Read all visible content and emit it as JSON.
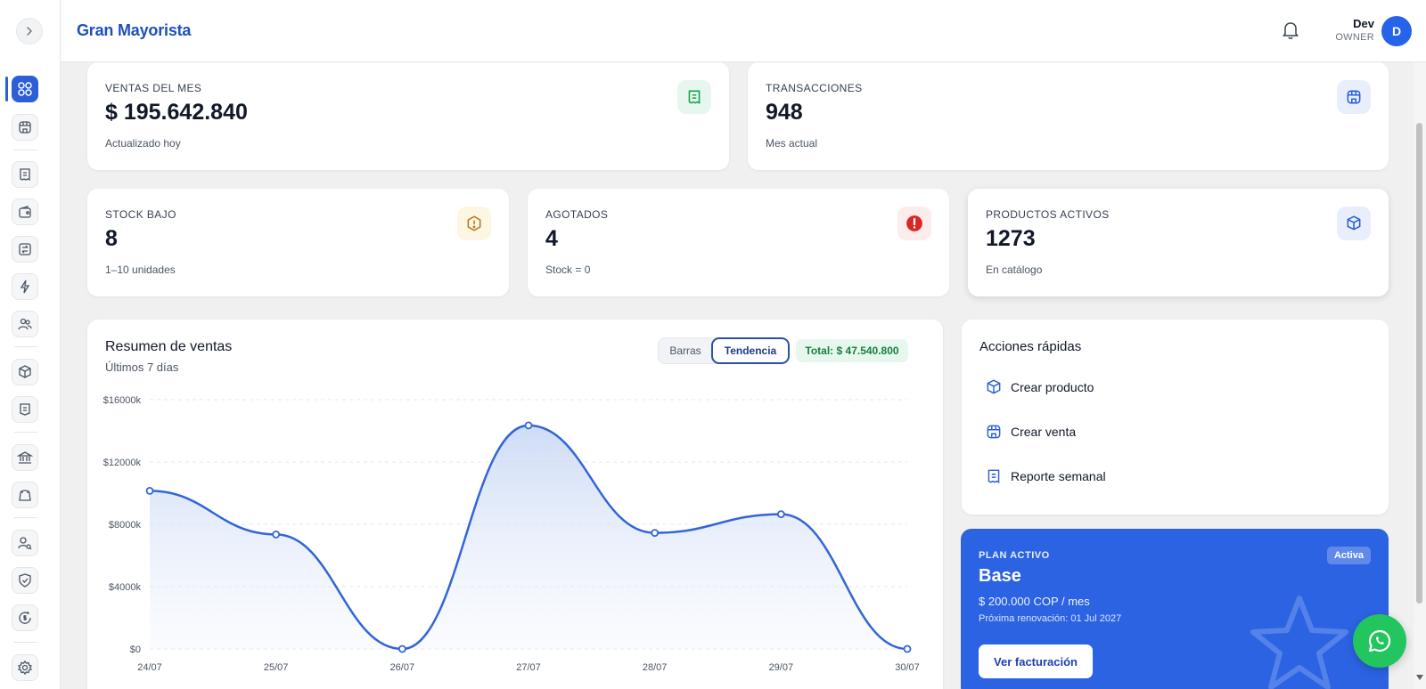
{
  "app": {
    "brand": "Gran Mayorista"
  },
  "user": {
    "name": "Dev",
    "role": "OWNER",
    "initial": "D"
  },
  "sidebar": {
    "items": [
      {
        "icon": "dashboard-icon",
        "active": true
      },
      {
        "icon": "store-icon"
      },
      {
        "icon": "receipt-icon"
      },
      {
        "icon": "wallet-icon"
      },
      {
        "icon": "transfer-icon"
      },
      {
        "icon": "lightning-icon"
      },
      {
        "icon": "users-icon"
      },
      {
        "icon": "box-icon"
      },
      {
        "icon": "invoice-icon"
      },
      {
        "icon": "bank-icon"
      },
      {
        "icon": "bag-icon"
      },
      {
        "icon": "user-search-icon"
      },
      {
        "icon": "shield-icon"
      },
      {
        "icon": "money-cycle-icon"
      },
      {
        "icon": "settings-icon"
      }
    ]
  },
  "stats": {
    "sales": {
      "label": "VENTAS DEL MES",
      "value": "$ 195.642.840",
      "sub": "Actualizado hoy",
      "icon": "receipt-icon",
      "icon_color": "#16a34a",
      "icon_bg": "#e7f6ee"
    },
    "transactions": {
      "label": "TRANSACCIONES",
      "value": "948",
      "sub": "Mes actual",
      "icon": "store-icon",
      "icon_color": "#2c5fd6",
      "icon_bg": "#e8eefc"
    },
    "low_stock": {
      "label": "STOCK BAJO",
      "value": "8",
      "sub": "1–10 unidades",
      "icon": "warning-hexagon-icon",
      "icon_color": "#b7791f",
      "icon_bg": "#fdf6e3"
    },
    "out_of_stock": {
      "label": "AGOTADOS",
      "value": "4",
      "sub": "Stock = 0",
      "icon": "alert-circle-icon",
      "icon_color": "#dc2626",
      "icon_bg": "#fdecec"
    },
    "active_products": {
      "label": "PRODUCTOS ACTIVOS",
      "value": "1273",
      "sub": "En catálogo",
      "icon": "box-icon",
      "icon_color": "#2c5fd6",
      "icon_bg": "#e8eefc"
    }
  },
  "sales_summary": {
    "title": "Resumen de ventas",
    "subtitle": "Últimos 7 días",
    "toggle_bars": "Barras",
    "toggle_trend": "Tendencia",
    "total": "Total: $ 47.540.800"
  },
  "chart_data": {
    "type": "area",
    "categories": [
      "24/07",
      "25/07",
      "26/07",
      "27/07",
      "28/07",
      "29/07",
      "30/07"
    ],
    "values": [
      10150,
      7350,
      0,
      14350,
      7450,
      8650,
      0
    ],
    "yticks": [
      "$16000k",
      "$12000k",
      "$8000k",
      "$4000k",
      "$0"
    ],
    "ylim": [
      0,
      16000
    ],
    "grid": true,
    "line_color": "#3265d6"
  },
  "quick_actions": {
    "title": "Acciones rápidas",
    "items": [
      {
        "label": "Crear producto",
        "icon": "box-icon"
      },
      {
        "label": "Crear venta",
        "icon": "store-icon"
      },
      {
        "label": "Reporte semanal",
        "icon": "receipt-icon"
      }
    ]
  },
  "plan": {
    "label": "PLAN ACTIVO",
    "badge": "Activa",
    "name": "Base",
    "price": "$ 200.000 COP / mes",
    "renewal": "Próxima renovación: 01 Jul 2027",
    "button": "Ver facturación",
    "color": "#2b63e3"
  }
}
